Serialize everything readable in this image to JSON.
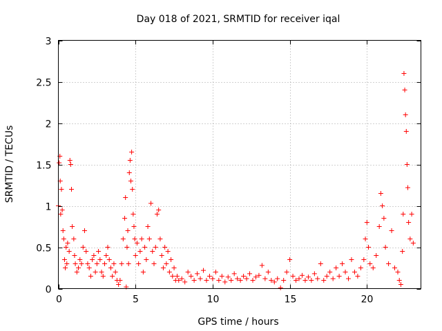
{
  "chart_data": {
    "type": "scatter",
    "title": "Day 018 of 2021, SRMTID for receiver iqal",
    "xlabel": "GPS time / hours",
    "ylabel": "SRMTID / TECUs",
    "xlim": [
      0,
      23.5
    ],
    "ylim": [
      0,
      3
    ],
    "xticks": [
      0,
      5,
      10,
      15,
      20
    ],
    "yticks": [
      0,
      0.5,
      1,
      1.5,
      2,
      2.5,
      3
    ],
    "xtick_labels": [
      "0",
      "5",
      "10",
      "15",
      "20"
    ],
    "ytick_labels": [
      "0",
      "0.5",
      "1",
      "1.5",
      "2",
      "2.5",
      "3"
    ],
    "grid": true,
    "marker": "+",
    "series_color": "#ff0000",
    "series": [
      {
        "name": "SRMTID",
        "points": [
          [
            0.0,
            1.0
          ],
          [
            0.05,
            1.52
          ],
          [
            0.1,
            1.6
          ],
          [
            0.12,
            1.3
          ],
          [
            0.15,
            0.9
          ],
          [
            0.2,
            1.2
          ],
          [
            0.25,
            0.95
          ],
          [
            0.3,
            0.7
          ],
          [
            0.35,
            0.6
          ],
          [
            0.4,
            0.35
          ],
          [
            0.45,
            0.25
          ],
          [
            0.5,
            0.5
          ],
          [
            0.55,
            0.3
          ],
          [
            0.6,
            0.55
          ],
          [
            0.7,
            0.45
          ],
          [
            0.75,
            1.55
          ],
          [
            0.8,
            1.5
          ],
          [
            0.85,
            1.2
          ],
          [
            0.9,
            0.75
          ],
          [
            1.0,
            0.6
          ],
          [
            1.05,
            0.4
          ],
          [
            1.1,
            0.3
          ],
          [
            1.2,
            0.2
          ],
          [
            1.3,
            0.25
          ],
          [
            1.4,
            0.35
          ],
          [
            1.5,
            0.3
          ],
          [
            1.6,
            0.5
          ],
          [
            1.7,
            0.7
          ],
          [
            1.8,
            0.45
          ],
          [
            1.9,
            0.3
          ],
          [
            2.0,
            0.25
          ],
          [
            2.1,
            0.15
          ],
          [
            2.2,
            0.35
          ],
          [
            2.3,
            0.4
          ],
          [
            2.4,
            0.2
          ],
          [
            2.5,
            0.3
          ],
          [
            2.6,
            0.45
          ],
          [
            2.7,
            0.35
          ],
          [
            2.8,
            0.2
          ],
          [
            2.9,
            0.15
          ],
          [
            3.0,
            0.3
          ],
          [
            3.1,
            0.4
          ],
          [
            3.2,
            0.5
          ],
          [
            3.3,
            0.35
          ],
          [
            3.4,
            0.25
          ],
          [
            3.5,
            0.15
          ],
          [
            3.6,
            0.3
          ],
          [
            3.7,
            0.2
          ],
          [
            3.8,
            0.1
          ],
          [
            3.9,
            0.05
          ],
          [
            4.0,
            0.1
          ],
          [
            4.1,
            0.3
          ],
          [
            4.2,
            0.6
          ],
          [
            4.3,
            0.85
          ],
          [
            4.35,
            1.1
          ],
          [
            4.4,
            0.02
          ],
          [
            4.45,
            0.5
          ],
          [
            4.5,
            0.7
          ],
          [
            4.55,
            0.3
          ],
          [
            4.6,
            1.4
          ],
          [
            4.65,
            1.55
          ],
          [
            4.7,
            1.3
          ],
          [
            4.75,
            1.65
          ],
          [
            4.8,
            1.2
          ],
          [
            4.85,
            0.9
          ],
          [
            4.9,
            0.75
          ],
          [
            4.95,
            0.6
          ],
          [
            5.0,
            0.4
          ],
          [
            5.1,
            0.55
          ],
          [
            5.2,
            0.3
          ],
          [
            5.3,
            0.45
          ],
          [
            5.4,
            0.6
          ],
          [
            5.5,
            0.2
          ],
          [
            5.6,
            0.5
          ],
          [
            5.7,
            0.35
          ],
          [
            5.8,
            0.75
          ],
          [
            5.9,
            0.6
          ],
          [
            6.0,
            1.03
          ],
          [
            6.1,
            0.45
          ],
          [
            6.2,
            0.3
          ],
          [
            6.3,
            0.5
          ],
          [
            6.4,
            0.9
          ],
          [
            6.5,
            0.95
          ],
          [
            6.6,
            0.6
          ],
          [
            6.7,
            0.4
          ],
          [
            6.8,
            0.25
          ],
          [
            6.9,
            0.5
          ],
          [
            7.0,
            0.3
          ],
          [
            7.1,
            0.45
          ],
          [
            7.2,
            0.2
          ],
          [
            7.3,
            0.35
          ],
          [
            7.4,
            0.15
          ],
          [
            7.5,
            0.25
          ],
          [
            7.6,
            0.1
          ],
          [
            7.7,
            0.15
          ],
          [
            7.8,
            0.1
          ],
          [
            8.0,
            0.12
          ],
          [
            8.2,
            0.08
          ],
          [
            8.4,
            0.2
          ],
          [
            8.6,
            0.15
          ],
          [
            8.8,
            0.1
          ],
          [
            9.0,
            0.18
          ],
          [
            9.2,
            0.12
          ],
          [
            9.4,
            0.22
          ],
          [
            9.6,
            0.1
          ],
          [
            9.8,
            0.15
          ],
          [
            10.0,
            0.12
          ],
          [
            10.2,
            0.2
          ],
          [
            10.4,
            0.1
          ],
          [
            10.6,
            0.15
          ],
          [
            10.8,
            0.08
          ],
          [
            11.0,
            0.14
          ],
          [
            11.2,
            0.1
          ],
          [
            11.4,
            0.18
          ],
          [
            11.6,
            0.12
          ],
          [
            11.8,
            0.1
          ],
          [
            12.0,
            0.15
          ],
          [
            12.2,
            0.12
          ],
          [
            12.4,
            0.18
          ],
          [
            12.6,
            0.1
          ],
          [
            12.8,
            0.14
          ],
          [
            13.0,
            0.16
          ],
          [
            13.2,
            0.28
          ],
          [
            13.4,
            0.12
          ],
          [
            13.6,
            0.2
          ],
          [
            13.8,
            0.1
          ],
          [
            14.0,
            0.08
          ],
          [
            14.2,
            0.12
          ],
          [
            14.4,
            0.01
          ],
          [
            14.6,
            0.1
          ],
          [
            14.8,
            0.2
          ],
          [
            15.0,
            0.35
          ],
          [
            15.2,
            0.15
          ],
          [
            15.4,
            0.1
          ],
          [
            15.6,
            0.12
          ],
          [
            15.8,
            0.16
          ],
          [
            16.0,
            0.1
          ],
          [
            16.2,
            0.14
          ],
          [
            16.4,
            0.1
          ],
          [
            16.6,
            0.18
          ],
          [
            16.8,
            0.12
          ],
          [
            17.0,
            0.3
          ],
          [
            17.2,
            0.1
          ],
          [
            17.4,
            0.15
          ],
          [
            17.6,
            0.2
          ],
          [
            17.8,
            0.12
          ],
          [
            18.0,
            0.25
          ],
          [
            18.2,
            0.15
          ],
          [
            18.4,
            0.3
          ],
          [
            18.6,
            0.2
          ],
          [
            18.8,
            0.12
          ],
          [
            19.0,
            0.35
          ],
          [
            19.2,
            0.2
          ],
          [
            19.4,
            0.15
          ],
          [
            19.6,
            0.25
          ],
          [
            19.8,
            0.35
          ],
          [
            19.9,
            0.6
          ],
          [
            20.0,
            0.8
          ],
          [
            20.1,
            0.5
          ],
          [
            20.2,
            0.3
          ],
          [
            20.4,
            0.25
          ],
          [
            20.6,
            0.4
          ],
          [
            20.8,
            0.75
          ],
          [
            20.9,
            1.15
          ],
          [
            21.0,
            1.0
          ],
          [
            21.1,
            0.85
          ],
          [
            21.2,
            0.5
          ],
          [
            21.4,
            0.3
          ],
          [
            21.6,
            0.7
          ],
          [
            21.8,
            0.25
          ],
          [
            22.0,
            0.2
          ],
          [
            22.1,
            0.1
          ],
          [
            22.2,
            0.05
          ],
          [
            22.3,
            0.45
          ],
          [
            22.35,
            0.9
          ],
          [
            22.4,
            2.6
          ],
          [
            22.45,
            2.4
          ],
          [
            22.5,
            2.1
          ],
          [
            22.55,
            1.9
          ],
          [
            22.6,
            1.5
          ],
          [
            22.65,
            1.22
          ],
          [
            22.7,
            0.8
          ],
          [
            22.8,
            0.6
          ],
          [
            22.9,
            0.9
          ],
          [
            23.0,
            0.55
          ]
        ]
      }
    ]
  }
}
